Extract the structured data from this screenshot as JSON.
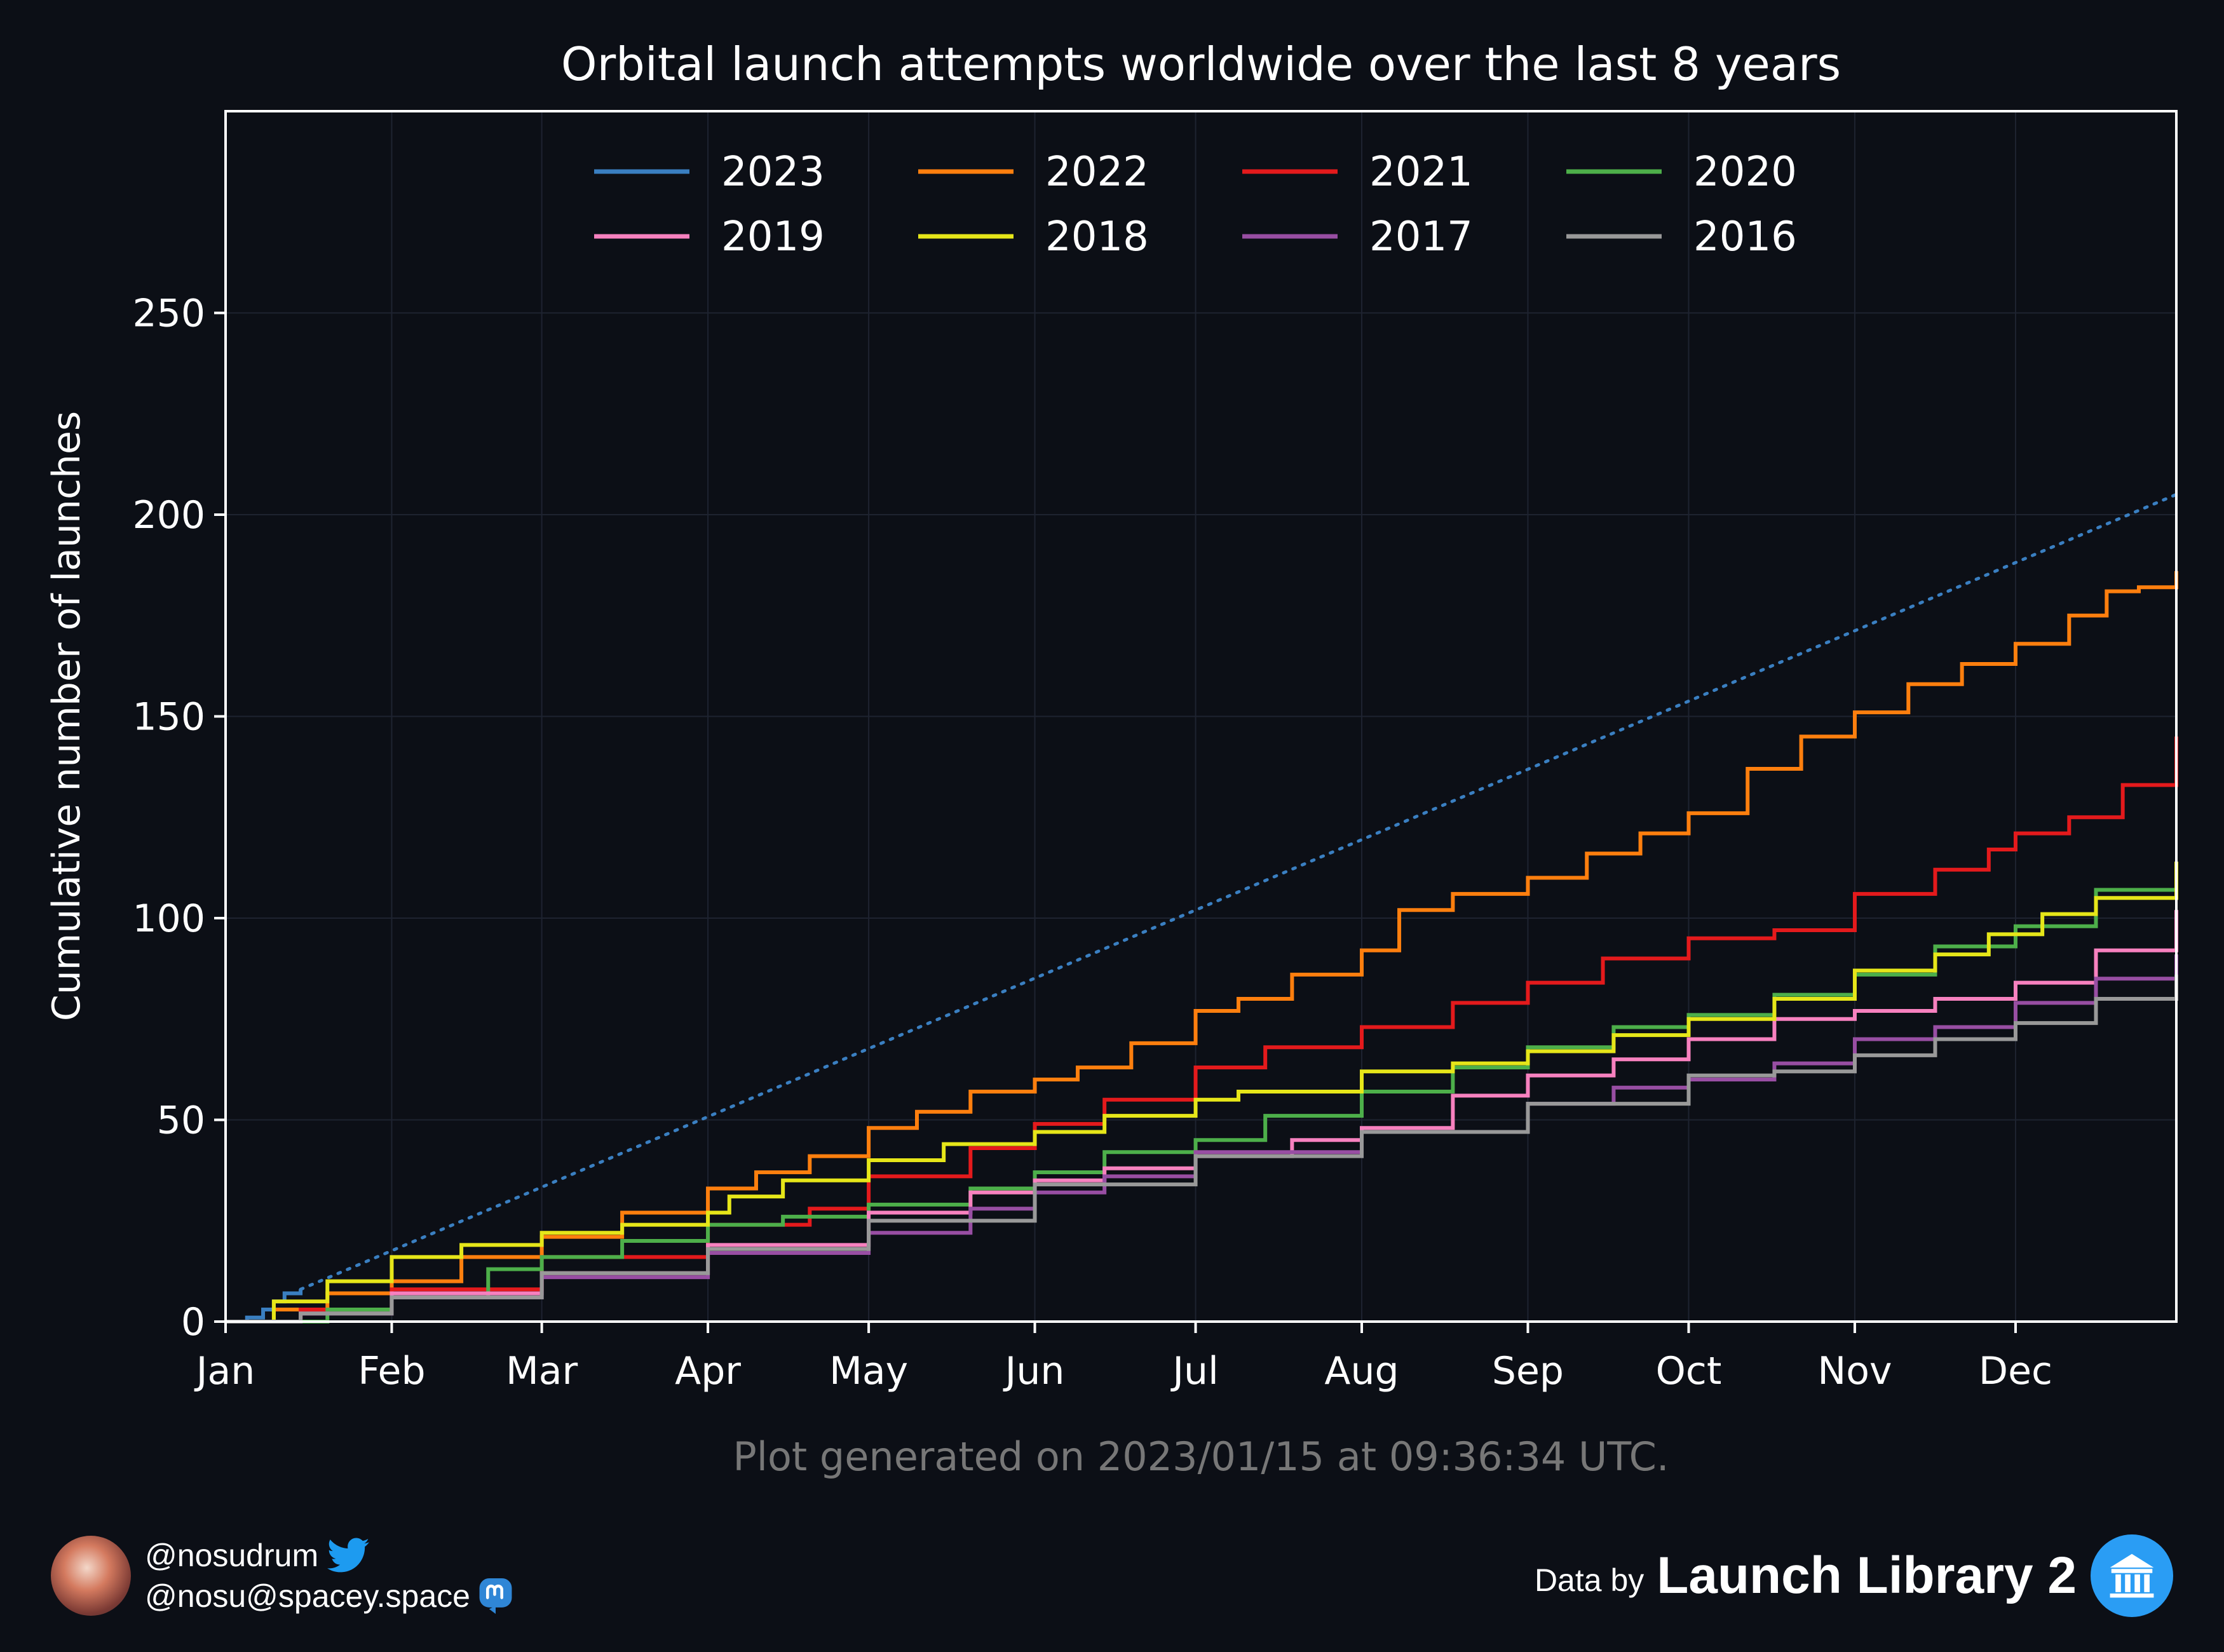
{
  "footer": {
    "generated_note": "Plot generated on 2023/01/15 at 09:36:34 UTC.",
    "twitter_handle": "@nosudrum",
    "mastodon_handle": "@nosu@spacey.space",
    "data_by_label": "Data by",
    "source_name": "Launch Library 2"
  },
  "colors": {
    "background": "#0c0f16",
    "axes": "#ffffff",
    "grid": "#1e2330",
    "note": "#777777",
    "twitter": "#1d9bf0",
    "mastodon": "#2f86d6",
    "ll2": "#2a9df4"
  },
  "icons": [
    "avatar-icon",
    "twitter-bird-icon",
    "mastodon-icon",
    "launch-library-logo-icon"
  ],
  "chart_data": {
    "type": "line",
    "title": "Orbital launch attempts worldwide over the last 8 years",
    "xlabel": "",
    "ylabel": "Cumulative number of launches",
    "x_unit": "day of year",
    "xlim": [
      1,
      365
    ],
    "ylim": [
      0,
      300
    ],
    "x_ticks": [
      {
        "label": "Jan",
        "day": 1
      },
      {
        "label": "Feb",
        "day": 32
      },
      {
        "label": "Mar",
        "day": 60
      },
      {
        "label": "Apr",
        "day": 91
      },
      {
        "label": "May",
        "day": 121
      },
      {
        "label": "Jun",
        "day": 152
      },
      {
        "label": "Jul",
        "day": 182
      },
      {
        "label": "Aug",
        "day": 213
      },
      {
        "label": "Sep",
        "day": 244
      },
      {
        "label": "Oct",
        "day": 274
      },
      {
        "label": "Nov",
        "day": 305
      },
      {
        "label": "Dec",
        "day": 335
      }
    ],
    "y_ticks": [
      0,
      50,
      100,
      150,
      200,
      250
    ],
    "grid": true,
    "legend_position": "top-center",
    "legend_columns": 4,
    "series": [
      {
        "name": "2023",
        "color": "#3a7fc1",
        "style": "step",
        "points": [
          [
            1,
            0
          ],
          [
            5,
            1
          ],
          [
            8,
            3
          ],
          [
            10,
            5
          ],
          [
            12,
            7
          ],
          [
            15,
            8
          ]
        ]
      },
      {
        "name": "2023",
        "legend": false,
        "color": "#3a7fc1",
        "style": "dotted",
        "points": [
          [
            15,
            8
          ],
          [
            365,
            205
          ]
        ]
      },
      {
        "name": "2022",
        "color": "#ff7f0e",
        "style": "step",
        "points": [
          [
            1,
            0
          ],
          [
            10,
            3
          ],
          [
            20,
            7
          ],
          [
            32,
            10
          ],
          [
            45,
            16
          ],
          [
            60,
            21
          ],
          [
            75,
            27
          ],
          [
            91,
            33
          ],
          [
            100,
            37
          ],
          [
            110,
            41
          ],
          [
            121,
            48
          ],
          [
            130,
            52
          ],
          [
            140,
            57
          ],
          [
            152,
            60
          ],
          [
            160,
            63
          ],
          [
            170,
            69
          ],
          [
            182,
            77
          ],
          [
            190,
            80
          ],
          [
            200,
            86
          ],
          [
            213,
            92
          ],
          [
            220,
            102
          ],
          [
            230,
            106
          ],
          [
            244,
            110
          ],
          [
            255,
            116
          ],
          [
            265,
            121
          ],
          [
            274,
            126
          ],
          [
            285,
            137
          ],
          [
            295,
            145
          ],
          [
            305,
            151
          ],
          [
            315,
            158
          ],
          [
            325,
            163
          ],
          [
            335,
            168
          ],
          [
            345,
            175
          ],
          [
            352,
            181
          ],
          [
            358,
            182
          ],
          [
            365,
            186
          ]
        ]
      },
      {
        "name": "2021",
        "color": "#e41a1c",
        "style": "step",
        "points": [
          [
            1,
            0
          ],
          [
            15,
            3
          ],
          [
            32,
            8
          ],
          [
            60,
            16
          ],
          [
            91,
            24
          ],
          [
            110,
            28
          ],
          [
            121,
            36
          ],
          [
            140,
            43
          ],
          [
            152,
            49
          ],
          [
            165,
            55
          ],
          [
            182,
            63
          ],
          [
            195,
            68
          ],
          [
            213,
            73
          ],
          [
            230,
            79
          ],
          [
            244,
            84
          ],
          [
            258,
            90
          ],
          [
            274,
            95
          ],
          [
            290,
            97
          ],
          [
            305,
            106
          ],
          [
            320,
            112
          ],
          [
            330,
            117
          ],
          [
            335,
            121
          ],
          [
            345,
            125
          ],
          [
            355,
            133
          ],
          [
            365,
            145
          ]
        ]
      },
      {
        "name": "2020",
        "color": "#4daf4a",
        "style": "step",
        "points": [
          [
            1,
            0
          ],
          [
            20,
            3
          ],
          [
            32,
            6
          ],
          [
            50,
            13
          ],
          [
            60,
            16
          ],
          [
            75,
            20
          ],
          [
            91,
            24
          ],
          [
            105,
            26
          ],
          [
            121,
            29
          ],
          [
            140,
            33
          ],
          [
            152,
            37
          ],
          [
            165,
            42
          ],
          [
            182,
            45
          ],
          [
            195,
            51
          ],
          [
            213,
            57
          ],
          [
            230,
            63
          ],
          [
            244,
            68
          ],
          [
            260,
            73
          ],
          [
            274,
            76
          ],
          [
            290,
            81
          ],
          [
            305,
            86
          ],
          [
            320,
            93
          ],
          [
            335,
            98
          ],
          [
            350,
            107
          ],
          [
            365,
            114
          ]
        ]
      },
      {
        "name": "2019",
        "color": "#f781bf",
        "style": "step",
        "points": [
          [
            1,
            0
          ],
          [
            15,
            2
          ],
          [
            32,
            7
          ],
          [
            60,
            12
          ],
          [
            91,
            19
          ],
          [
            121,
            27
          ],
          [
            140,
            32
          ],
          [
            152,
            35
          ],
          [
            165,
            38
          ],
          [
            182,
            41
          ],
          [
            200,
            45
          ],
          [
            213,
            48
          ],
          [
            230,
            56
          ],
          [
            244,
            61
          ],
          [
            260,
            65
          ],
          [
            274,
            70
          ],
          [
            290,
            75
          ],
          [
            305,
            77
          ],
          [
            320,
            80
          ],
          [
            335,
            84
          ],
          [
            350,
            92
          ],
          [
            365,
            102
          ]
        ]
      },
      {
        "name": "2018",
        "color": "#e6e619",
        "style": "step",
        "points": [
          [
            1,
            0
          ],
          [
            10,
            5
          ],
          [
            20,
            10
          ],
          [
            32,
            16
          ],
          [
            45,
            19
          ],
          [
            60,
            22
          ],
          [
            75,
            24
          ],
          [
            91,
            27
          ],
          [
            95,
            31
          ],
          [
            105,
            35
          ],
          [
            121,
            40
          ],
          [
            135,
            44
          ],
          [
            152,
            47
          ],
          [
            165,
            51
          ],
          [
            182,
            55
          ],
          [
            190,
            57
          ],
          [
            213,
            62
          ],
          [
            230,
            64
          ],
          [
            244,
            67
          ],
          [
            260,
            71
          ],
          [
            274,
            75
          ],
          [
            290,
            80
          ],
          [
            305,
            87
          ],
          [
            320,
            91
          ],
          [
            330,
            96
          ],
          [
            340,
            101
          ],
          [
            350,
            105
          ],
          [
            365,
            114
          ]
        ]
      },
      {
        "name": "2017",
        "color": "#984ea3",
        "style": "step",
        "points": [
          [
            1,
            0
          ],
          [
            15,
            2
          ],
          [
            32,
            6
          ],
          [
            60,
            11
          ],
          [
            91,
            17
          ],
          [
            121,
            22
          ],
          [
            140,
            28
          ],
          [
            152,
            32
          ],
          [
            165,
            36
          ],
          [
            182,
            42
          ],
          [
            213,
            47
          ],
          [
            244,
            54
          ],
          [
            260,
            58
          ],
          [
            274,
            60
          ],
          [
            290,
            64
          ],
          [
            305,
            70
          ],
          [
            320,
            73
          ],
          [
            335,
            79
          ],
          [
            350,
            85
          ],
          [
            365,
            91
          ]
        ]
      },
      {
        "name": "2016",
        "color": "#999999",
        "style": "step",
        "points": [
          [
            1,
            0
          ],
          [
            15,
            2
          ],
          [
            32,
            6
          ],
          [
            60,
            12
          ],
          [
            91,
            18
          ],
          [
            121,
            25
          ],
          [
            152,
            34
          ],
          [
            182,
            41
          ],
          [
            213,
            47
          ],
          [
            244,
            54
          ],
          [
            274,
            61
          ],
          [
            290,
            62
          ],
          [
            305,
            66
          ],
          [
            320,
            70
          ],
          [
            335,
            74
          ],
          [
            350,
            80
          ],
          [
            365,
            86
          ]
        ]
      }
    ]
  }
}
